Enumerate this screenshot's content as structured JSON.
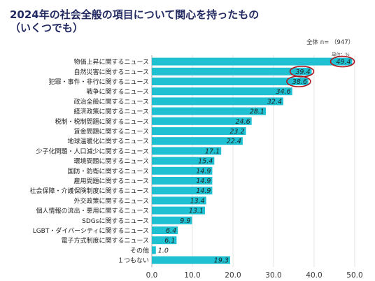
{
  "header": {
    "title_line1": "2024年の社会全般の項目について関心を持ったもの",
    "title_line2": "（いくつでも）",
    "base_label": "全体 n= （947）",
    "unit_label": "単位：%"
  },
  "colors": {
    "bar": "#1ec0d2",
    "title": "#232a61",
    "highlight": "#b3141c",
    "grid": "#dddddd"
  },
  "chart_data": {
    "type": "bar",
    "orientation": "horizontal",
    "categories": [
      "物価上昇に関するニュース",
      "自然災害に関するニュース",
      "犯罪・事件・非行に関するニュース",
      "戦争に関するニュース",
      "政治全般に関するニュース",
      "経済政策に関するニュース",
      "税制・税制問題に関するニュース",
      "賃金問題に関するニュース",
      "地球温暖化に関するニュース",
      "少子化問題・人口減少に関するニュース",
      "環境問題に関するニュース",
      "国防・防衛に関するニュース",
      "雇用問題に関するニュース",
      "社会保障・介護保険制度に関するニュース",
      "外交政策に関するニュース",
      "個人情報の流出・悪用に関するニュース",
      "SDGsに関するニュース",
      "LGBT・ダイバーシティに関するニュース",
      "電子方式制度に関するニュース",
      "その他",
      "１つもない"
    ],
    "values": [
      49.4,
      39.4,
      38.6,
      34.6,
      32.4,
      28.1,
      24.6,
      23.2,
      22.4,
      17.1,
      15.4,
      14.9,
      14.9,
      14.9,
      13.4,
      13.1,
      9.9,
      6.4,
      6.1,
      1.0,
      19.3
    ],
    "value_labels": [
      "49.4",
      "39.4",
      "38.6",
      "34.6",
      "32.4",
      "28.1",
      "24.6",
      "23.2",
      "22.4",
      "17.1",
      "15.4",
      "14.9",
      "14.9",
      "14.9",
      "13.4",
      "13.1",
      "9.9",
      "6.4",
      "6.1",
      "1.0",
      "19.3"
    ],
    "highlighted_indices": [
      0,
      1,
      2
    ],
    "xlim": [
      0,
      50
    ],
    "xticks": [
      0,
      10,
      20,
      30,
      40,
      50
    ],
    "xtick_labels": [
      "0.0",
      "10.0",
      "20.0",
      "30.0",
      "40.0",
      "50.0"
    ],
    "grid": true
  }
}
